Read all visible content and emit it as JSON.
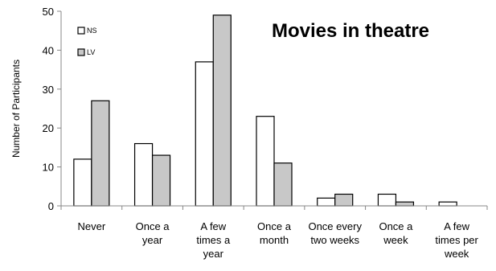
{
  "chart_data": {
    "type": "bar",
    "title": "Movies in theatre",
    "ylabel": "Number of Participants",
    "xlabel": "",
    "ylim": [
      0,
      50
    ],
    "yticks": [
      0,
      10,
      20,
      30,
      40,
      50
    ],
    "categories": [
      [
        "Never"
      ],
      [
        "Once a",
        "year"
      ],
      [
        "A few",
        "times a",
        "year"
      ],
      [
        "Once a",
        "month"
      ],
      [
        "Once every",
        "two weeks"
      ],
      [
        "Once a",
        "week"
      ],
      [
        "A few",
        "times per",
        "week"
      ]
    ],
    "series": [
      {
        "name": "NS",
        "color": "#ffffff",
        "values": [
          12,
          16,
          37,
          23,
          2,
          3,
          1
        ]
      },
      {
        "name": "LV",
        "color": "#c8c8c8",
        "values": [
          27,
          13,
          49,
          11,
          3,
          1,
          0
        ]
      }
    ],
    "legend_position": "top-left",
    "grid": false
  }
}
